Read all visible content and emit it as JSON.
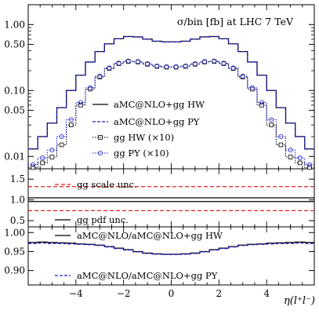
{
  "chart_data": [
    {
      "type": "line",
      "title": "σ/bin [fb]   at LHC 7 TeV",
      "ylabel": "",
      "xlabel": "",
      "yscale": "log",
      "ylim": [
        0.0065,
        2.0
      ],
      "xlim": [
        -6,
        6
      ],
      "yticks": [
        1.0,
        0.5,
        0.1,
        0.05,
        0.01
      ],
      "ytick_labels": [
        "1.00",
        "0.50",
        "0.10",
        "0.05",
        "0.01"
      ],
      "x": [
        -5.8,
        -5.4,
        -5.0,
        -4.6,
        -4.2,
        -3.8,
        -3.4,
        -3.0,
        -2.6,
        -2.2,
        -1.8,
        -1.4,
        -1.0,
        -0.6,
        -0.2,
        0.2,
        0.6,
        1.0,
        1.4,
        1.8,
        2.2,
        2.6,
        3.0,
        3.4,
        3.8,
        4.2,
        4.6,
        5.0,
        5.4,
        5.8
      ],
      "series": [
        {
          "name": "aMC@NLO+gg HW",
          "style": "solid",
          "color": "#000000",
          "step": true,
          "values": [
            0.013,
            0.02,
            0.032,
            0.055,
            0.1,
            0.17,
            0.27,
            0.39,
            0.51,
            0.61,
            0.66,
            0.65,
            0.6,
            0.56,
            0.545,
            0.545,
            0.56,
            0.6,
            0.65,
            0.66,
            0.61,
            0.51,
            0.39,
            0.27,
            0.17,
            0.1,
            0.055,
            0.032,
            0.02,
            0.013
          ]
        },
        {
          "name": "aMC@NLO+gg PY",
          "style": "dashed",
          "color": "#1f1fd0",
          "step": true,
          "values": [
            0.013,
            0.02,
            0.032,
            0.055,
            0.1,
            0.17,
            0.27,
            0.39,
            0.51,
            0.61,
            0.66,
            0.65,
            0.6,
            0.56,
            0.545,
            0.545,
            0.56,
            0.6,
            0.65,
            0.66,
            0.61,
            0.51,
            0.39,
            0.27,
            0.17,
            0.1,
            0.055,
            0.032,
            0.02,
            0.013
          ]
        },
        {
          "name": "gg HW (×10)",
          "style": "dotted",
          "color": "#000000",
          "marker": "square",
          "step": true,
          "values": [
            0.0068,
            0.008,
            0.0098,
            0.015,
            0.03,
            0.06,
            0.105,
            0.16,
            0.215,
            0.255,
            0.275,
            0.27,
            0.25,
            0.232,
            0.226,
            0.226,
            0.232,
            0.25,
            0.27,
            0.275,
            0.255,
            0.215,
            0.16,
            0.105,
            0.06,
            0.03,
            0.015,
            0.0098,
            0.008,
            0.0068
          ]
        },
        {
          "name": "gg PY (×10)",
          "style": "dotted",
          "color": "#1f1fd0",
          "marker": "circle",
          "step": true,
          "values": [
            0.0075,
            0.0095,
            0.0125,
            0.02,
            0.036,
            0.066,
            0.11,
            0.165,
            0.22,
            0.26,
            0.28,
            0.275,
            0.255,
            0.236,
            0.229,
            0.229,
            0.236,
            0.255,
            0.275,
            0.28,
            0.26,
            0.22,
            0.165,
            0.11,
            0.066,
            0.036,
            0.02,
            0.0125,
            0.0095,
            0.0075
          ]
        }
      ]
    },
    {
      "type": "line",
      "ylim": [
        0.35,
        1.75
      ],
      "yticks": [
        1.5,
        1.0,
        0.5
      ],
      "ytick_labels": [
        "1.5",
        "1.0",
        "0.5"
      ],
      "x": [
        -6,
        6
      ],
      "series": [
        {
          "name": "gg scale unc.",
          "style": "dashed",
          "color": "#e02020",
          "values": [
            1.32,
            1.32
          ]
        },
        {
          "name": "",
          "style": "dashed",
          "color": "#e02020",
          "values": [
            0.74,
            0.74
          ]
        },
        {
          "name": "gg pdf unc.",
          "style": "solid",
          "color": "#000000",
          "values": [
            1.05,
            1.05
          ]
        },
        {
          "name": "",
          "style": "solid",
          "color": "#000000",
          "values": [
            0.96,
            0.96
          ]
        }
      ]
    },
    {
      "type": "line",
      "ylim": [
        0.862,
        1.015
      ],
      "xlim": [
        -6,
        6
      ],
      "yticks": [
        1.0,
        0.95,
        0.9
      ],
      "ytick_labels": [
        "1.00",
        "0.95",
        "0.90"
      ],
      "xticks": [
        -4,
        -2,
        0,
        2,
        4
      ],
      "xtick_labels": [
        "−4",
        "−2",
        "0",
        "2",
        "4"
      ],
      "xlabel": "η(l⁺l⁻)",
      "x": [
        -5.8,
        -5.4,
        -5.0,
        -4.6,
        -4.2,
        -3.8,
        -3.4,
        -3.0,
        -2.6,
        -2.2,
        -1.8,
        -1.4,
        -1.0,
        -0.6,
        -0.2,
        0.2,
        0.6,
        1.0,
        1.4,
        1.8,
        2.2,
        2.6,
        3.0,
        3.4,
        3.8,
        4.2,
        4.6,
        5.0,
        5.4,
        5.8
      ],
      "series": [
        {
          "name": "aMC@NLO/aMC@NLO+gg HW",
          "style": "solid",
          "color": "#000000",
          "step": true,
          "values": [
            0.974,
            0.975,
            0.974,
            0.973,
            0.972,
            0.97,
            0.969,
            0.967,
            0.963,
            0.959,
            0.955,
            0.95,
            0.946,
            0.944,
            0.943,
            0.943,
            0.944,
            0.946,
            0.95,
            0.955,
            0.959,
            0.963,
            0.967,
            0.969,
            0.97,
            0.972,
            0.973,
            0.974,
            0.975,
            0.974
          ]
        },
        {
          "name": "aMC@NLO/aMC@NLO+gg PY",
          "style": "dashed",
          "color": "#1f1fd0",
          "step": true,
          "values": [
            0.971,
            0.972,
            0.971,
            0.971,
            0.97,
            0.969,
            0.968,
            0.966,
            0.962,
            0.958,
            0.954,
            0.949,
            0.945,
            0.943,
            0.942,
            0.942,
            0.943,
            0.945,
            0.949,
            0.954,
            0.958,
            0.962,
            0.966,
            0.968,
            0.969,
            0.97,
            0.971,
            0.971,
            0.972,
            0.971
          ]
        }
      ]
    }
  ]
}
